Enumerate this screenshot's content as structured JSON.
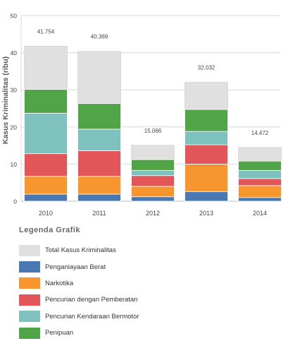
{
  "chart_data": {
    "type": "bar",
    "stacked": true,
    "categories": [
      "2010",
      "2011",
      "2012",
      "2013",
      "2014"
    ],
    "ylabel": "Kasus Kriminalitas (ribu)",
    "ylim": [
      0,
      50
    ],
    "yticks": [
      0,
      10,
      20,
      30,
      40,
      50
    ],
    "grid": true,
    "legend_title": "Legenda Grafik",
    "legend_position": "bottom",
    "total": {
      "name": "Total Kasus Kriminalitas",
      "color": "#e0e0e0",
      "values": [
        41.754,
        40.369,
        15.066,
        32.032,
        14.472
      ],
      "labels": [
        "41.754",
        "40.369",
        "15.066",
        "32.032",
        "14.472"
      ]
    },
    "series": [
      {
        "name": "Penganiayaan Berat",
        "color": "#4a78b2",
        "values": [
          1.9,
          1.9,
          1.2,
          2.6,
          1.0
        ]
      },
      {
        "name": "Narkotika",
        "color": "#f7962f",
        "values": [
          4.8,
          4.8,
          2.8,
          7.4,
          3.2
        ]
      },
      {
        "name": "Pencurian dengan Pemberatan",
        "color": "#e25558",
        "values": [
          6.1,
          6.9,
          2.9,
          5.2,
          1.9
        ]
      },
      {
        "name": "Pencurian Kendaraan Bermotor",
        "color": "#7fc1be",
        "values": [
          10.9,
          5.8,
          1.4,
          3.6,
          2.2
        ]
      },
      {
        "name": "Penipuan",
        "color": "#52a448",
        "values": [
          6.4,
          6.9,
          2.9,
          5.9,
          2.5
        ]
      }
    ]
  }
}
